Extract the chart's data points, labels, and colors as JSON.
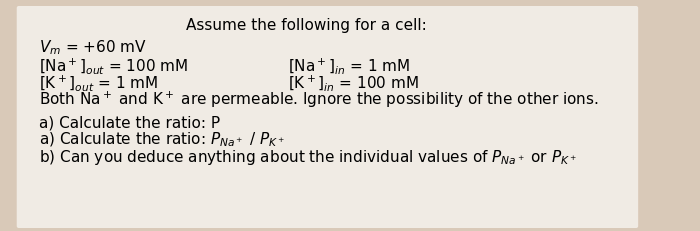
{
  "background_color": "#d9c9b8",
  "paper_color": "#f0ebe4",
  "title": "Assume the following for a cell:",
  "lines_left": [
    "Vₘ = +60 mV",
    "[Na⁺]₀ᵤₜ = 100 mM",
    "[K⁺]₀ᵤₜ = 1 mM",
    "Both Na⁺ and K⁺ are permeable. Ignore the possibility of the other ions."
  ],
  "lines_right": [
    "[Na⁺]ᵢₙ = 1 mM",
    "[K⁺]ᵢₙ = 100 mM"
  ],
  "question_a": "a) Calculate the ratio: P",
  "question_a_sub1": "Na+",
  "question_a_mid": " / P",
  "question_a_sub2": "K+",
  "question_b": "b) Can you deduce anything about the individual values of P",
  "question_b_sub1": "Na+",
  "question_b_mid": " or P",
  "question_b_sub2": "K+",
  "title_fontsize": 11,
  "body_fontsize": 11,
  "sub_fontsize": 8
}
